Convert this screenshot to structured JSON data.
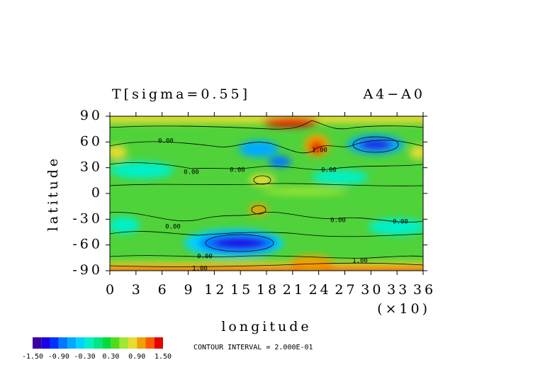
{
  "chart_data": {
    "type": "contour",
    "title": "T[sigma=0.55]",
    "subtitle": "A4−A0",
    "x_label": "longitude",
    "x_scale_label": "(×10)",
    "y_label": "latitude",
    "xlim": [
      0,
      36
    ],
    "xticks": [
      0,
      3,
      6,
      9,
      12,
      15,
      18,
      21,
      24,
      27,
      30,
      33,
      36
    ],
    "ylim": [
      -90,
      90
    ],
    "yticks": [
      -90,
      -60,
      -30,
      0,
      30,
      60,
      90
    ],
    "contour_interval_label": "CONTOUR INTERVAL = 2.000E-01",
    "contour_labels": [
      "0.00",
      "0.00",
      "0.00",
      "0.00",
      "0.00",
      "0.00",
      "0.00",
      "0.00",
      "1.00",
      "1.00",
      "1.00"
    ],
    "colorbar": {
      "levels": [
        -1.5,
        -1.3,
        -1.1,
        -0.9,
        -0.7,
        -0.5,
        -0.3,
        -0.1,
        0.1,
        0.3,
        0.5,
        0.7,
        0.9,
        1.1,
        1.3,
        1.5
      ],
      "colors": [
        "#3c00a0",
        "#1e00e6",
        "#0032ff",
        "#0078ff",
        "#00aaff",
        "#00d2ff",
        "#00f0c8",
        "#00e682",
        "#00dc3c",
        "#50dc1e",
        "#a0e632",
        "#e6dc32",
        "#f0a000",
        "#fa5a00",
        "#e60000"
      ],
      "ticks": [
        {
          "value": -1.5,
          "label": "-1.50"
        },
        {
          "value": -0.9,
          "label": "-0.90"
        },
        {
          "value": -0.3,
          "label": "-0.30"
        },
        {
          "value": 0.3,
          "label": "0.30"
        },
        {
          "value": 0.9,
          "label": "0.90"
        },
        {
          "value": 1.5,
          "label": "1.50"
        }
      ]
    }
  }
}
